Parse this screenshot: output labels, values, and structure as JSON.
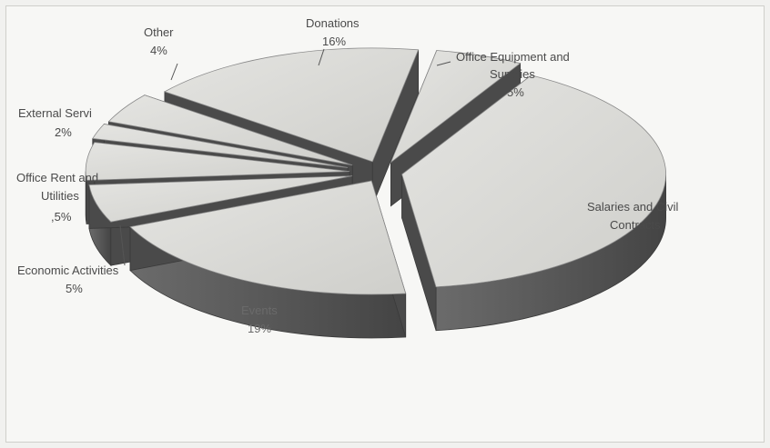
{
  "chart_data": {
    "type": "pie",
    "title": "",
    "exploded": true,
    "style": "3d",
    "colors": {
      "top": "#d9d9d6",
      "side": "#5e5e5e",
      "edge": "#3a3a3a"
    },
    "slices": [
      {
        "name": "Office Equipment and Supplies",
        "value": 5,
        "pct_label": "5%"
      },
      {
        "name": "Salaries and Civil Contracts",
        "value": 37,
        "pct_label": ""
      },
      {
        "name": "Events",
        "value": 19,
        "pct_label": "19%"
      },
      {
        "name": "Economic Activities",
        "value": 5,
        "pct_label": "5%"
      },
      {
        "name": "Office Rent and Utilities",
        "value": 5,
        "pct_label": ",5%"
      },
      {
        "name": "External Servi",
        "value": 2,
        "pct_label": "2%"
      },
      {
        "name": "Other",
        "value": 4,
        "pct_label": "4%"
      },
      {
        "name": "Donations",
        "value": 16,
        "pct_label": "16%"
      }
    ]
  },
  "labels": {
    "office_equipment_line1": "Office Equipment and",
    "office_equipment_line2": "Supplies",
    "salaries_line1": "Salaries and Civil",
    "salaries_line2": "Contracts",
    "office_rent_line1": "Office Rent and",
    "office_rent_line2": "Utilities"
  }
}
